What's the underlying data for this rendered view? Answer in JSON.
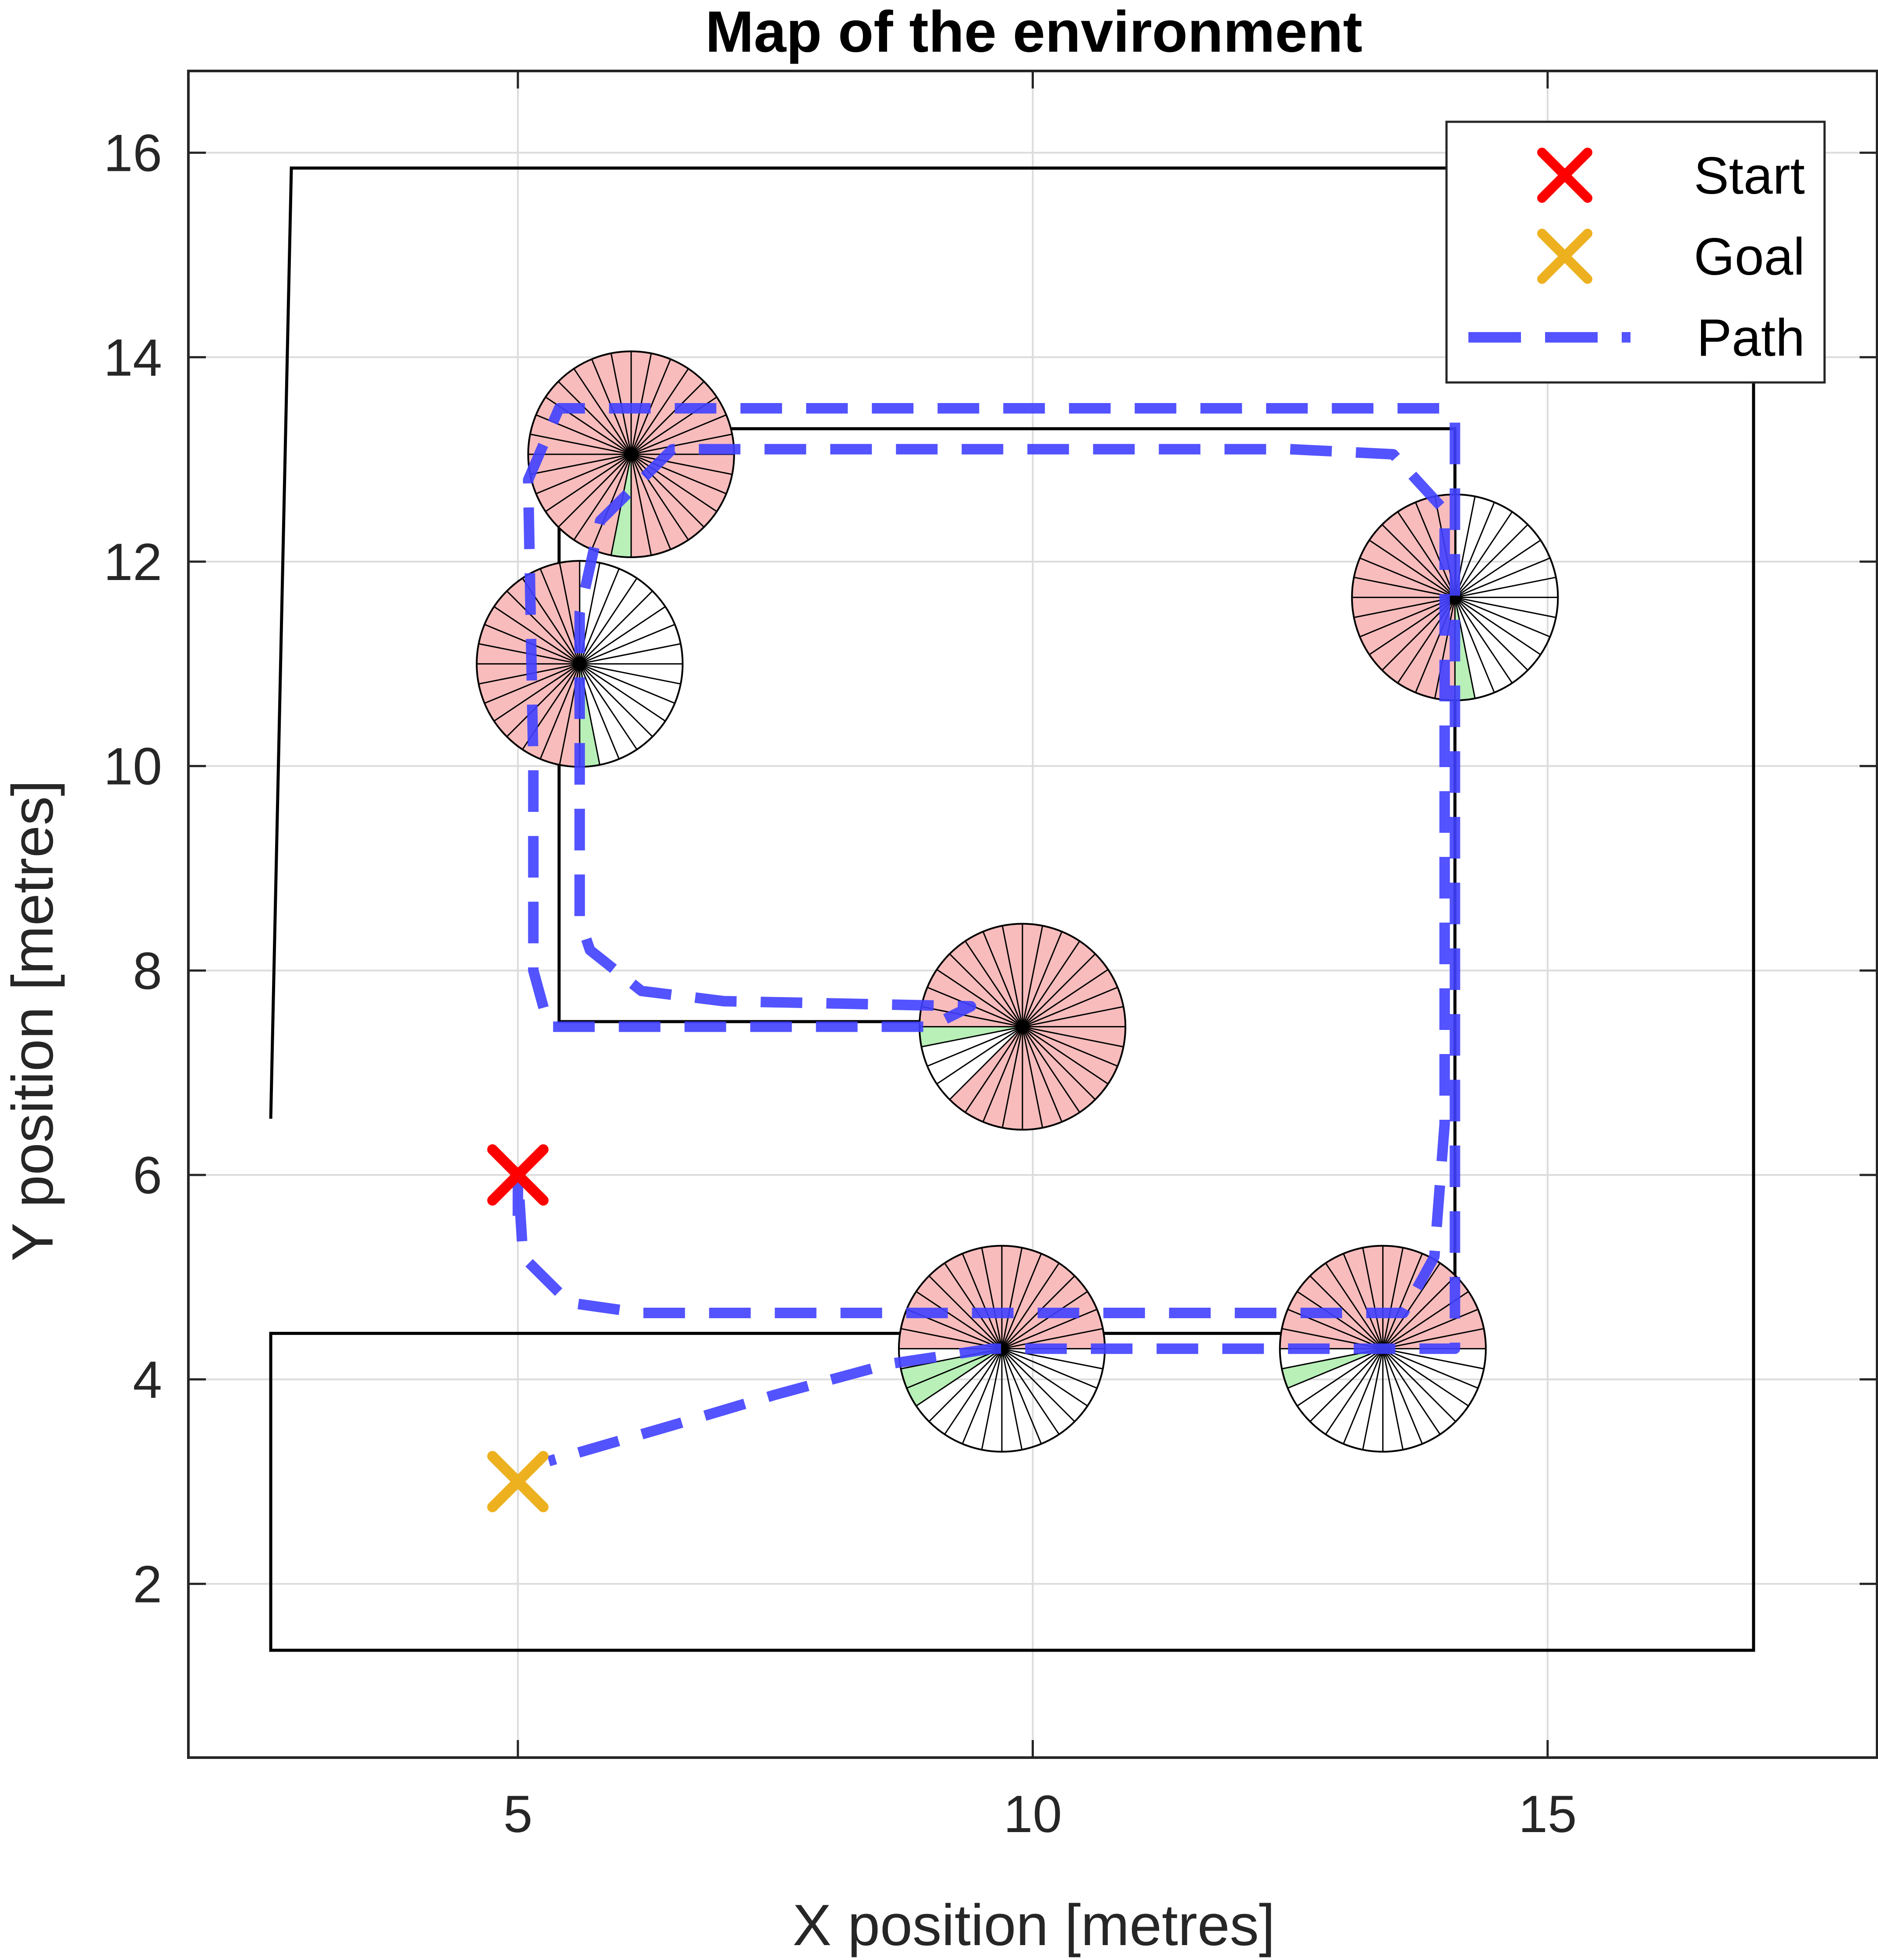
{
  "chart_data": {
    "type": "line",
    "title": "Map of the environment",
    "xlabel": "X position [metres]",
    "ylabel": "Y position [metres]",
    "xlim": [
      1.8,
      18.2
    ],
    "ylim": [
      0.3,
      16.8
    ],
    "xticks": [
      5,
      10,
      15
    ],
    "yticks": [
      2,
      4,
      6,
      8,
      10,
      12,
      14,
      16
    ],
    "grid": true,
    "legend_position": "top-right",
    "colors": {
      "start": "#ff0000",
      "goal": "#edb120",
      "path": "#4040ff",
      "obstacle_sector": "#f8bcbc",
      "free_sector": "#b8f0b8",
      "walls": "#000000"
    },
    "legend": [
      {
        "label": "Start",
        "marker": "x",
        "color": "#ff0000"
      },
      {
        "label": "Goal",
        "marker": "x",
        "color": "#edb120"
      },
      {
        "label": "Path",
        "marker": "dashed-line",
        "color": "#4040ff"
      }
    ],
    "start": [
      5.0,
      6.0
    ],
    "goal": [
      5.0,
      3.0
    ],
    "walls": [
      [
        [
          2.6,
          6.55
        ],
        [
          2.8,
          15.85
        ],
        [
          14.8,
          15.85
        ],
        [
          17.0,
          15.0
        ],
        [
          17.0,
          1.35
        ],
        [
          2.6,
          1.35
        ],
        [
          2.6,
          4.45
        ],
        [
          14.1,
          4.45
        ],
        [
          14.1,
          13.3
        ],
        [
          5.4,
          13.3
        ],
        [
          5.4,
          7.5
        ],
        [
          9.9,
          7.5
        ]
      ]
    ],
    "path": [
      [
        5.0,
        5.6
      ],
      [
        5.0,
        6.0
      ],
      [
        5.05,
        5.2
      ],
      [
        5.5,
        4.75
      ],
      [
        6.2,
        4.65
      ],
      [
        9.0,
        4.65
      ],
      [
        13.6,
        4.65
      ],
      [
        13.9,
        5.2
      ],
      [
        14.0,
        6.5
      ],
      [
        14.0,
        12.5
      ],
      [
        13.5,
        13.05
      ],
      [
        12.5,
        13.1
      ],
      [
        6.5,
        13.1
      ],
      [
        5.8,
        12.4
      ],
      [
        5.6,
        11.5
      ],
      [
        5.6,
        10.0
      ],
      [
        5.6,
        8.5
      ],
      [
        5.7,
        8.2
      ],
      [
        6.2,
        7.8
      ],
      [
        7.0,
        7.7
      ],
      [
        9.4,
        7.65
      ],
      [
        9.0,
        7.45
      ],
      [
        5.3,
        7.45
      ],
      [
        5.15,
        8.0
      ],
      [
        5.15,
        10.0
      ],
      [
        5.1,
        12.8
      ],
      [
        5.4,
        13.5
      ],
      [
        6.0,
        13.5
      ],
      [
        14.0,
        13.5
      ],
      [
        14.1,
        13.4
      ],
      [
        14.1,
        10.0
      ],
      [
        14.1,
        4.3
      ],
      [
        12.0,
        4.3
      ],
      [
        9.6,
        4.3
      ],
      [
        8.6,
        4.15
      ],
      [
        7.5,
        3.85
      ],
      [
        6.5,
        3.55
      ],
      [
        5.3,
        3.2
      ]
    ],
    "robot_poses": [
      {
        "x": 6.1,
        "y": 13.05,
        "radius": 1.0,
        "rays": 32,
        "blocked_rays": [
          0,
          1,
          2,
          3,
          4,
          5,
          6,
          7,
          8,
          9,
          10,
          11,
          12,
          13,
          14,
          15,
          16,
          17,
          18,
          19,
          20,
          21,
          22,
          24,
          25,
          26,
          27,
          28,
          29,
          30,
          31
        ],
        "free_rays": [
          23
        ]
      },
      {
        "x": 5.6,
        "y": 11.0,
        "radius": 1.0,
        "rays": 32,
        "blocked_rays": [
          8,
          9,
          10,
          11,
          12,
          13,
          14,
          15,
          16,
          17,
          18,
          19,
          20,
          21,
          22,
          23
        ],
        "free_rays": [
          24
        ]
      },
      {
        "x": 14.1,
        "y": 11.65,
        "radius": 1.0,
        "rays": 32,
        "blocked_rays": [
          8,
          9,
          10,
          11,
          12,
          13,
          14,
          15,
          16,
          17,
          18,
          19,
          20,
          21,
          22,
          23
        ],
        "free_rays": [
          24
        ]
      },
      {
        "x": 9.9,
        "y": 7.45,
        "radius": 1.0,
        "rays": 32,
        "blocked_rays": [
          0,
          1,
          2,
          3,
          4,
          5,
          6,
          7,
          8,
          9,
          10,
          11,
          12,
          13,
          14,
          15,
          20,
          21,
          22,
          23,
          24,
          25,
          26,
          27,
          28,
          29,
          30,
          31
        ],
        "free_rays": [
          16
        ]
      },
      {
        "x": 9.7,
        "y": 4.3,
        "radius": 1.0,
        "rays": 32,
        "blocked_rays": [
          0,
          1,
          2,
          3,
          4,
          5,
          6,
          7,
          8,
          9,
          10,
          11,
          12,
          13,
          14,
          15
        ],
        "free_rays": [
          17,
          18
        ]
      },
      {
        "x": 13.4,
        "y": 4.3,
        "radius": 1.0,
        "rays": 32,
        "blocked_rays": [
          0,
          1,
          2,
          3,
          4,
          5,
          6,
          7,
          8,
          9,
          10,
          11,
          12,
          13,
          14,
          15
        ],
        "free_rays": [
          17
        ]
      }
    ]
  }
}
